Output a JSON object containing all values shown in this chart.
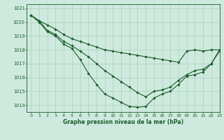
{
  "title": "Graphe pression niveau de la mer (hPa)",
  "bg_color": "#ceeade",
  "grid_color": "#aacfbe",
  "line_color": "#1a5c2a",
  "xlim": [
    -0.5,
    23
  ],
  "ylim": [
    1013.5,
    1021.3
  ],
  "yticks": [
    1014,
    1015,
    1016,
    1017,
    1018,
    1019,
    1020,
    1021
  ],
  "xticks": [
    0,
    1,
    2,
    3,
    4,
    5,
    6,
    7,
    8,
    9,
    10,
    11,
    12,
    13,
    14,
    15,
    16,
    17,
    18,
    19,
    20,
    21,
    22,
    23
  ],
  "series": [
    [
      1020.5,
      1020.1,
      1019.8,
      1019.5,
      1019.1,
      1018.8,
      1018.6,
      1018.4,
      1018.2,
      1018.0,
      1017.9,
      1017.8,
      1017.7,
      1017.6,
      1017.5,
      1017.4,
      1017.3,
      1017.2,
      1017.1,
      1017.9,
      1018.0,
      1017.9,
      1018.0,
      1018.0
    ],
    [
      1020.5,
      1020.1,
      1019.4,
      1019.1,
      1018.6,
      1018.3,
      1017.9,
      1017.5,
      1017.0,
      1016.5,
      1016.1,
      1015.7,
      1015.3,
      1014.9,
      1014.6,
      1015.0,
      1015.1,
      1015.3,
      1015.8,
      1016.2,
      1016.5,
      1016.6,
      1017.0,
      1017.9
    ],
    [
      1020.5,
      1020.0,
      1019.3,
      1019.0,
      1018.4,
      1018.1,
      1017.3,
      1016.3,
      1015.5,
      1014.8,
      1014.5,
      1014.2,
      1013.9,
      1013.85,
      1013.9,
      1014.5,
      1014.8,
      1015.0,
      1015.5,
      1016.1,
      1016.2,
      1016.4,
      1017.0,
      1018.0
    ]
  ]
}
